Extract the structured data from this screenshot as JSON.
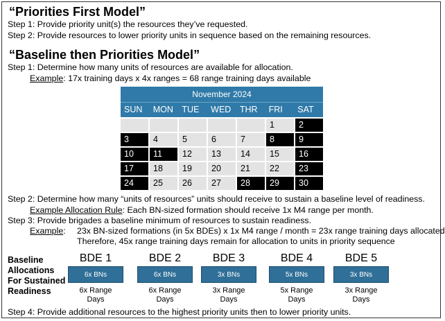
{
  "model1": {
    "title": "“Priorities First Model”",
    "step1": "Step 1: Provide priority unit(s) the resources they’ve requested.",
    "step2": "Step 2: Provide resources to lower priority units in sequence based on the remaining resources."
  },
  "model2": {
    "title": "“Baseline then Priorities Model”",
    "step1": "Step 1: Determine how many units of resources are available for allocation.",
    "example_label": "Example",
    "example_text": ": 17x training days x 4x ranges = 68 range training days available",
    "calendar": {
      "month": "November 2024",
      "days": [
        "SUN",
        "MON",
        "TUE",
        "WED",
        "THR",
        "FRI",
        "SAT"
      ],
      "rows": [
        [
          {
            "d": "",
            "dark": false
          },
          {
            "d": "",
            "dark": false
          },
          {
            "d": "",
            "dark": false
          },
          {
            "d": "",
            "dark": false
          },
          {
            "d": "",
            "dark": false
          },
          {
            "d": "1",
            "dark": false
          },
          {
            "d": "2",
            "dark": true
          }
        ],
        [
          {
            "d": "3",
            "dark": true
          },
          {
            "d": "4",
            "dark": false
          },
          {
            "d": "5",
            "dark": false
          },
          {
            "d": "6",
            "dark": false
          },
          {
            "d": "7",
            "dark": false
          },
          {
            "d": "8",
            "dark": true
          },
          {
            "d": "9",
            "dark": true
          }
        ],
        [
          {
            "d": "10",
            "dark": true
          },
          {
            "d": "11",
            "dark": true
          },
          {
            "d": "12",
            "dark": false
          },
          {
            "d": "13",
            "dark": false
          },
          {
            "d": "14",
            "dark": false
          },
          {
            "d": "15",
            "dark": false
          },
          {
            "d": "16",
            "dark": true
          }
        ],
        [
          {
            "d": "17",
            "dark": true
          },
          {
            "d": "18",
            "dark": false
          },
          {
            "d": "19",
            "dark": false
          },
          {
            "d": "20",
            "dark": false
          },
          {
            "d": "21",
            "dark": false
          },
          {
            "d": "22",
            "dark": false
          },
          {
            "d": "23",
            "dark": true
          }
        ],
        [
          {
            "d": "24",
            "dark": true
          },
          {
            "d": "25",
            "dark": false
          },
          {
            "d": "26",
            "dark": false
          },
          {
            "d": "27",
            "dark": false
          },
          {
            "d": "28",
            "dark": true
          },
          {
            "d": "29",
            "dark": true
          },
          {
            "d": "30",
            "dark": true
          }
        ]
      ]
    },
    "step2": "Step 2: Determine how many “units of resources” units should receive to sustain a baseline level of readiness.",
    "rule_label": "Example Allocation Rule",
    "rule_text": ": Each BN-sized formation should receive 1x M4 range per month.",
    "step3": "Step 3: Provide brigades a baseline minimum of resources to sustain readiness.",
    "example2_label": "Example",
    "example2_text": ":",
    "example2_line1": "23x BN-sized formations (in 5x BDEs) x 1x M4 range / month = 23x range training days allocated",
    "example2_line2": "Therefore, 45x range training days remain for allocation to units in priority sequence",
    "baseline_label_1": "Baseline",
    "baseline_label_2": "Allocations",
    "baseline_label_3": "For Sustained",
    "baseline_label_4": "Readiness",
    "bdes": [
      {
        "name": "BDE 1",
        "bns": "6x BNs",
        "days": "6x Range Days"
      },
      {
        "name": "BDE 2",
        "bns": "6x BNs",
        "days": "6x Range Days"
      },
      {
        "name": "BDE 3",
        "bns": "3x BNs",
        "days": "3x Range Days"
      },
      {
        "name": "BDE 4",
        "bns": "5x BNs",
        "days": "5x Range Days"
      },
      {
        "name": "BDE 5",
        "bns": "3x BNs",
        "days": "3x Range Days"
      }
    ],
    "step4": "Step 4: Provide additional resources to the highest priority units then to lower priority units."
  },
  "colors": {
    "calendar_header": "#2f7aa8",
    "bde_box": "#2f6f98",
    "dark_day": "#000000",
    "light_day": "#e3e3e3"
  }
}
